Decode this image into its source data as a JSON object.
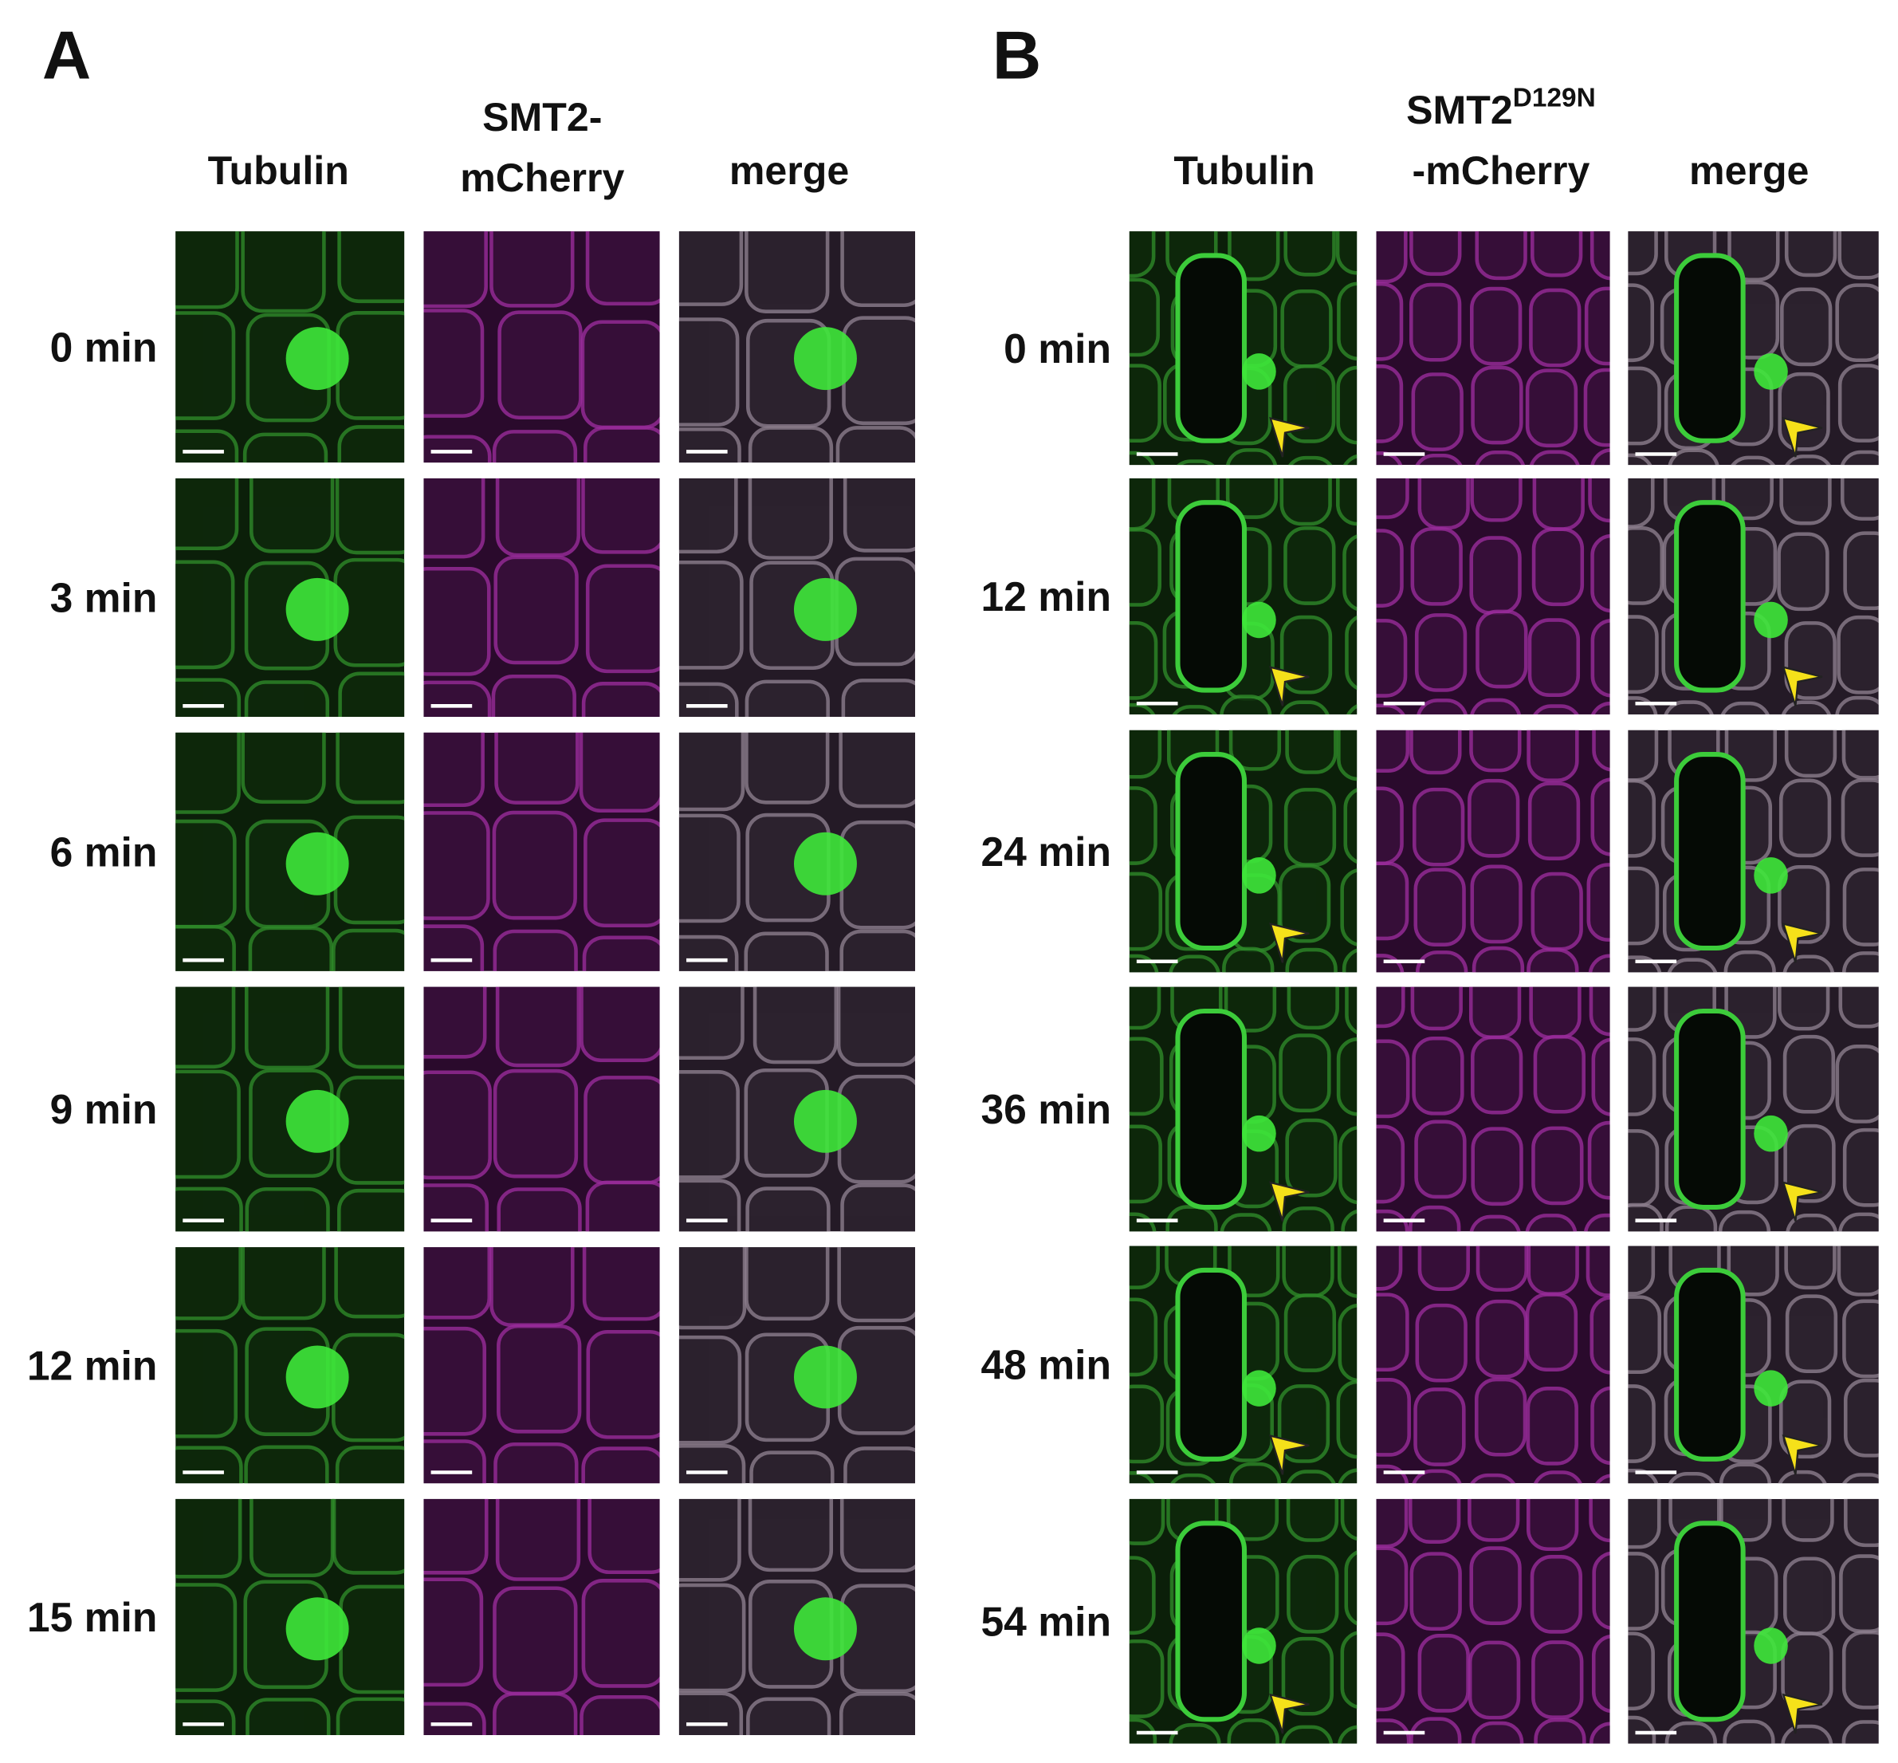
{
  "panels": [
    {
      "label": "A",
      "columns": [
        {
          "lines": [
            {
              "text": "Tubulin"
            }
          ]
        },
        {
          "lines": [
            {
              "text": "SMT2-"
            },
            {
              "text": "mCherry"
            }
          ]
        },
        {
          "lines": [
            {
              "text": "merge"
            }
          ]
        }
      ],
      "rows": [
        "0 min",
        "3 min",
        "6 min",
        "9 min",
        "12 min",
        "15 min"
      ]
    },
    {
      "label": "B",
      "columns": [
        {
          "lines": [
            {
              "text": "Tubulin"
            }
          ]
        },
        {
          "lines": [
            {
              "text": "SMT2",
              "sup": "D129N"
            },
            {
              "text": "-mCherry"
            }
          ]
        },
        {
          "lines": [
            {
              "text": "merge"
            }
          ]
        }
      ],
      "rows": [
        "0 min",
        "12 min",
        "24 min",
        "36 min",
        "48 min",
        "54 min"
      ]
    }
  ]
}
